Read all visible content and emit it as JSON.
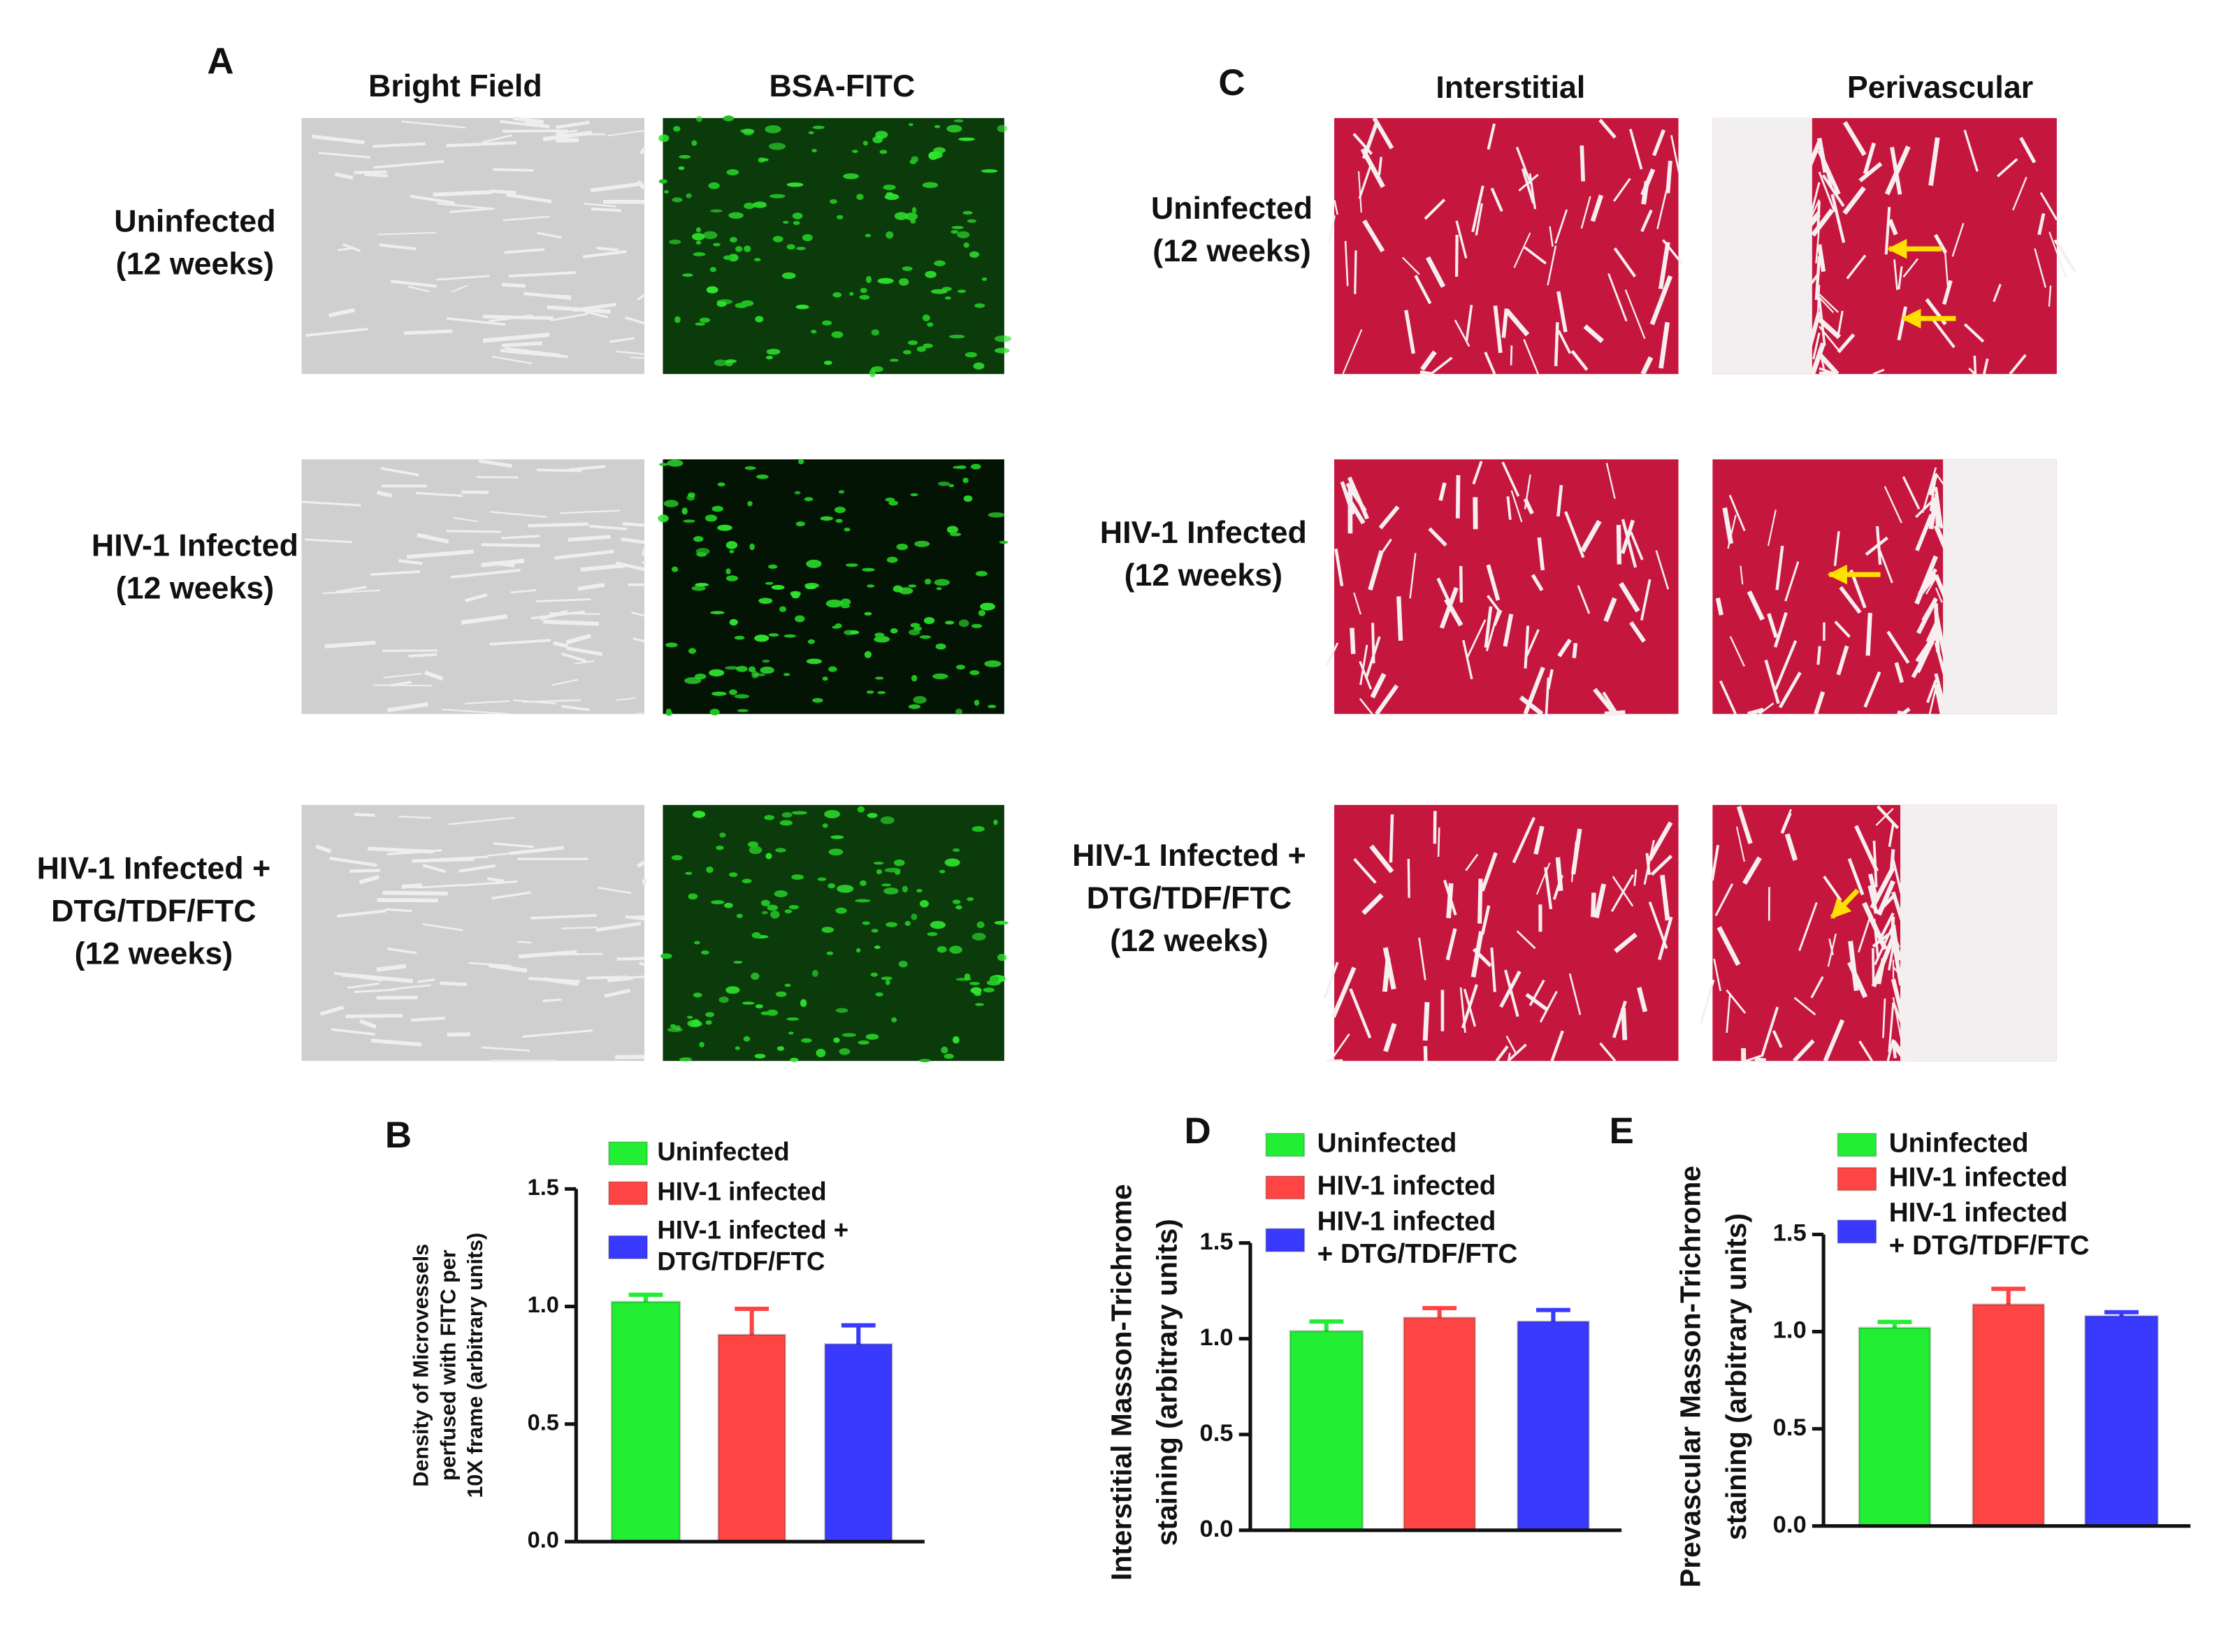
{
  "panels": [
    {
      "label": "A",
      "columns": [
        "Bright Field",
        "BSA-FITC"
      ],
      "rows": [
        [
          "Uninfected",
          "(12 weeks)"
        ],
        [
          "HIV-1 Infected",
          "(12 weeks)"
        ],
        [
          "HIV-1 Infected +",
          "DTG/TDF/FTC",
          "(12 weeks)"
        ]
      ]
    },
    {
      "label": "C",
      "columns": [
        "Interstitial",
        "Perivascular"
      ],
      "rows": [
        [
          "Uninfected",
          "(12 weeks)"
        ],
        [
          "HIV-1 Infected",
          "(12 weeks)"
        ],
        [
          "HIV-1 Infected +",
          "DTG/TDF/FTC",
          "(12 weeks)"
        ]
      ]
    }
  ],
  "chart_data": [
    {
      "type": "bar",
      "panel_label": "B",
      "ylabel": [
        "Density of Microvessels",
        "perfused  with FITC per",
        "10X frame (arbitrary units)"
      ],
      "ylim": [
        0,
        1.5
      ],
      "yticks": [
        {
          "value": 0,
          "label": "0.0"
        },
        0.5,
        {
          "value": 1,
          "label": "1.0"
        },
        1.5
      ],
      "series": [
        {
          "name": "Uninfected",
          "color": "#22ee33",
          "values": [
            1.02
          ],
          "errors": [
            0.03
          ]
        },
        {
          "name": "HIV-1 infected",
          "color": "#ff4444",
          "values": [
            0.88
          ],
          "errors": [
            0.11
          ]
        },
        {
          "name": "HIV-1 infected +\nDTG/TDF/FTC",
          "color": "#3a3aff",
          "values": [
            0.84
          ],
          "errors": [
            0.08
          ]
        }
      ]
    },
    {
      "type": "bar",
      "panel_label": "D",
      "ylabel": [
        "Interstitial Masson-Trichrome",
        "staining (arbitrary units)"
      ],
      "ylim": [
        0,
        1.5
      ],
      "yticks": [
        {
          "value": 0,
          "label": "0.0"
        },
        0.5,
        {
          "value": 1,
          "label": "1.0"
        },
        1.5
      ],
      "series": [
        {
          "name": "Uninfected",
          "color": "#22ee33",
          "values": [
            1.04
          ],
          "errors": [
            0.05
          ]
        },
        {
          "name": "HIV-1 infected",
          "color": "#ff4444",
          "values": [
            1.11
          ],
          "errors": [
            0.05
          ]
        },
        {
          "name": "HIV-1 infected\n+ DTG/TDF/FTC",
          "color": "#3a3aff",
          "values": [
            1.09
          ],
          "errors": [
            0.06
          ]
        }
      ]
    },
    {
      "type": "bar",
      "panel_label": "E",
      "ylabel": [
        "Prevascular  Masson-Trichrome",
        "staining (arbitrary units)"
      ],
      "ylim": [
        0,
        1.5
      ],
      "yticks": [
        {
          "value": 0,
          "label": "0.0"
        },
        0.5,
        {
          "value": 1,
          "label": "1.0"
        },
        1.5
      ],
      "series": [
        {
          "name": "Uninfected",
          "color": "#22ee33",
          "values": [
            1.02
          ],
          "errors": [
            0.03
          ]
        },
        {
          "name": "HIV-1 infected",
          "color": "#ff4444",
          "values": [
            1.14
          ],
          "errors": [
            0.08
          ]
        },
        {
          "name": "HIV-1 infected\n+ DTG/TDF/FTC",
          "color": "#3a3aff",
          "values": [
            1.08
          ],
          "errors": [
            0.02
          ]
        }
      ]
    }
  ]
}
